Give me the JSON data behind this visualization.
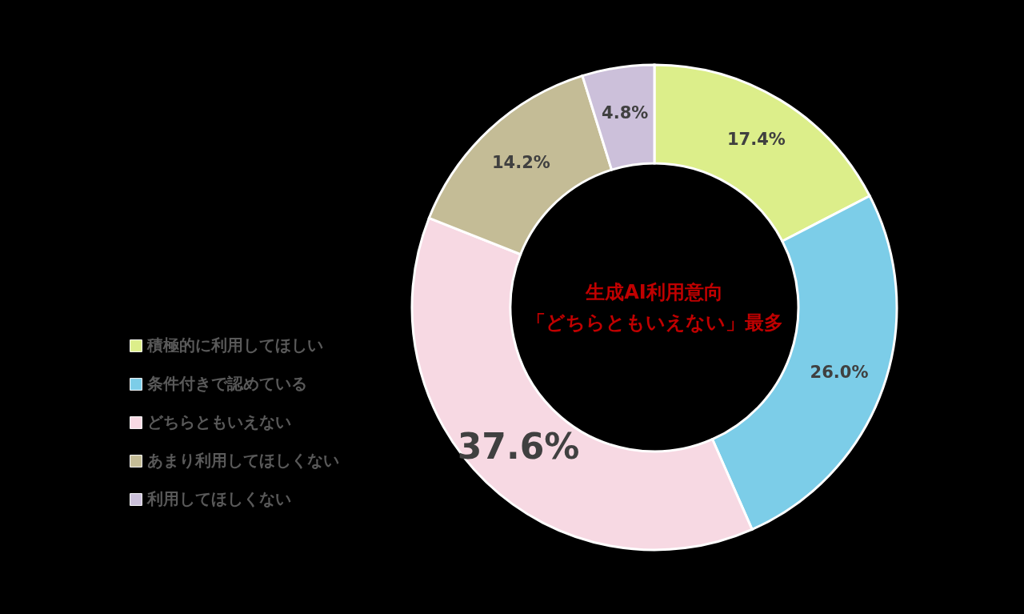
{
  "chart_data": {
    "type": "donut",
    "categories": [
      "積極的に利用してほしい",
      "条件付きで認めている",
      "どちらともいえない",
      "あまり利用してほしくない",
      "利用してほしくない"
    ],
    "values": [
      17.4,
      26.0,
      37.6,
      14.2,
      4.8
    ],
    "value_labels": [
      "17.4%",
      "26.0%",
      "37.6%",
      "14.2%",
      "4.8%"
    ],
    "colors": [
      "#dcee8a",
      "#7ccde8",
      "#f7d9e3",
      "#c4bc96",
      "#ccc0da"
    ],
    "annotations": [
      "生成AI利用意向",
      "「どちらともいえない」最多"
    ],
    "legend": "left"
  }
}
